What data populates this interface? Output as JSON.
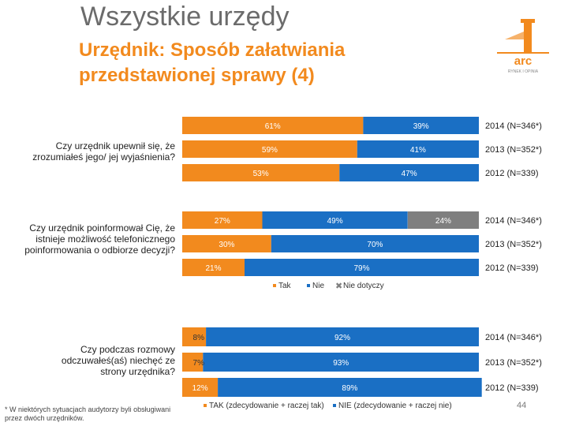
{
  "header": {
    "title": "Wszystkie urzędy",
    "subtitle_line1": "Urzędnik: Sposób załatwiania",
    "subtitle_line2": "przedstawionej sprawy (4)"
  },
  "logo": {
    "text": "arc",
    "subtext": "RYNEK I OPINIA"
  },
  "colors": {
    "tak": "#f28a1e",
    "nie": "#1a6fc4",
    "nie_dotyczy": "#7f7f7f",
    "text_on_bar": "#ffffff"
  },
  "chart_data": [
    {
      "type": "bar",
      "orientation": "horizontal",
      "stacked": true,
      "question": "Czy urzędnik upewnił się, że zrozumiałeś jego/ jej wyjaśnienia?",
      "categories": [
        "2014 (N=346*)",
        "2013 (N=352*)",
        "2012 (N=339)"
      ],
      "series": [
        {
          "name": "Tak",
          "values": [
            61,
            59,
            53
          ]
        },
        {
          "name": "Nie",
          "values": [
            39,
            41,
            47
          ]
        }
      ],
      "labels": [
        [
          "61%",
          "39%"
        ],
        [
          "59%",
          "41%"
        ],
        [
          "53%",
          "47%"
        ]
      ]
    },
    {
      "type": "bar",
      "orientation": "horizontal",
      "stacked": true,
      "question": "Czy urzędnik poinformował Cię, że istnieje możliwość telefonicznego poinformowania o odbiorze decyzji?",
      "categories": [
        "2014 (N=346*)",
        "2013 (N=352*)",
        "2012 (N=339)"
      ],
      "series": [
        {
          "name": "Tak",
          "values": [
            27,
            30,
            21
          ]
        },
        {
          "name": "Nie",
          "values": [
            49,
            70,
            79
          ]
        },
        {
          "name": "Nie dotyczy",
          "values": [
            24,
            0,
            0
          ]
        }
      ],
      "labels": [
        [
          "27%",
          "49%",
          "24%"
        ],
        [
          "30%",
          "70%"
        ],
        [
          "21%",
          "79%"
        ]
      ],
      "legend": [
        "Tak",
        "Nie",
        "Nie dotyczy"
      ]
    },
    {
      "type": "bar",
      "orientation": "horizontal",
      "stacked": true,
      "question": "Czy podczas rozmowy odczuwałeś(aś) niechęć ze strony urzędnika?",
      "categories": [
        "2014 (N=346*)",
        "2013 (N=352*)",
        "2012 (N=339)"
      ],
      "series": [
        {
          "name": "TAK (zdecydowanie + raczej tak)",
          "values": [
            8,
            7,
            12
          ]
        },
        {
          "name": "NIE (zdecydowanie + raczej nie)",
          "values": [
            92,
            93,
            89
          ]
        }
      ],
      "labels": [
        [
          "8%",
          "92%"
        ],
        [
          "7%",
          "93%"
        ],
        [
          "12%",
          "89%"
        ]
      ],
      "legend": [
        "TAK (zdecydowanie + raczej tak)",
        "NIE (zdecydowanie + raczej nie)"
      ]
    }
  ],
  "footnote": "* W niektórych sytuacjach audytorzy byli obsługiwani przez dwóch urzędników.",
  "page_number": "44"
}
